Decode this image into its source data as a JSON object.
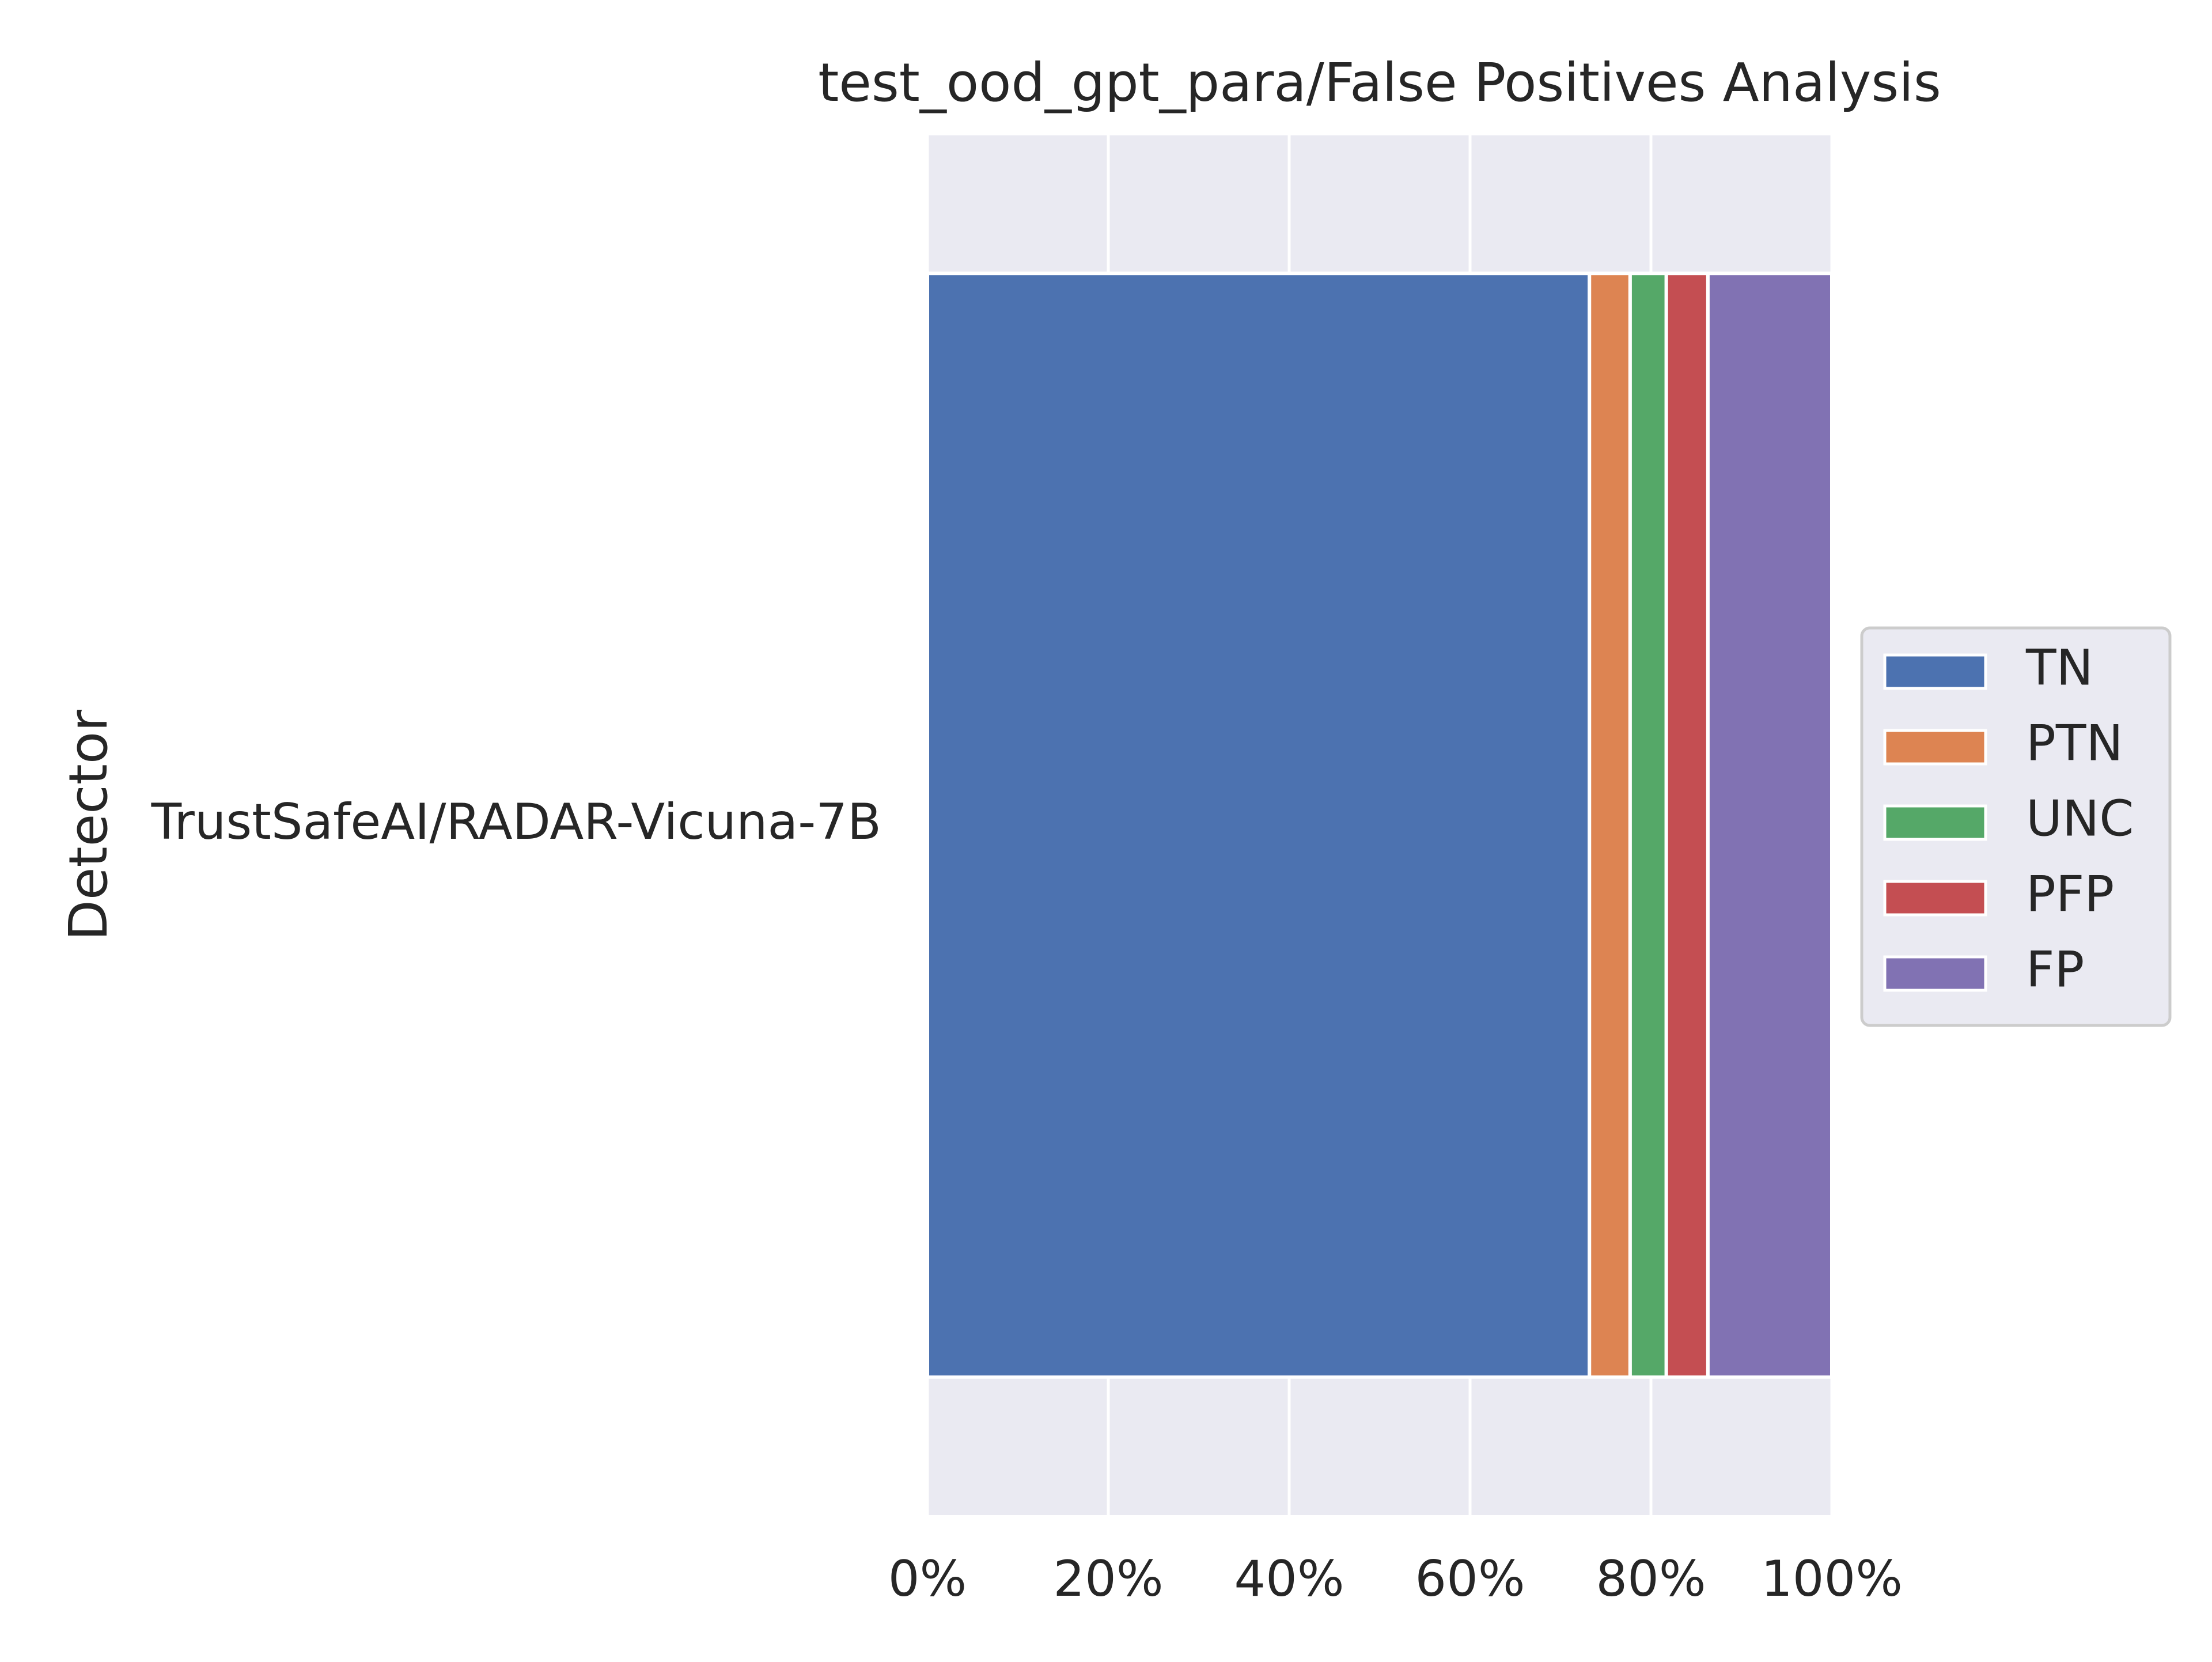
{
  "chart_data": {
    "type": "bar",
    "orientation": "horizontal",
    "stacked": true,
    "title": "test_ood_gpt_para/False Positives Analysis",
    "xlabel": "",
    "ylabel": "Detector",
    "categories": [
      "TrustSafeAI/RADAR-Vicuna-7B"
    ],
    "series": [
      {
        "name": "TN",
        "values": [
          73.2
        ],
        "color": "#4c72b0"
      },
      {
        "name": "PTN",
        "values": [
          4.5
        ],
        "color": "#dd8452"
      },
      {
        "name": "UNC",
        "values": [
          4.0
        ],
        "color": "#55a868"
      },
      {
        "name": "PFP",
        "values": [
          4.6
        ],
        "color": "#c44e52"
      },
      {
        "name": "FP",
        "values": [
          13.7
        ],
        "color": "#8172b3"
      }
    ],
    "xlim": [
      0,
      100
    ],
    "xticks": [
      0,
      20,
      40,
      60,
      80,
      100
    ],
    "xtick_labels": [
      "0%",
      "20%",
      "40%",
      "60%",
      "80%",
      "100%"
    ],
    "grid": true,
    "legend_position": "center-right, outside plot",
    "background_color": "#eaeaf2"
  }
}
